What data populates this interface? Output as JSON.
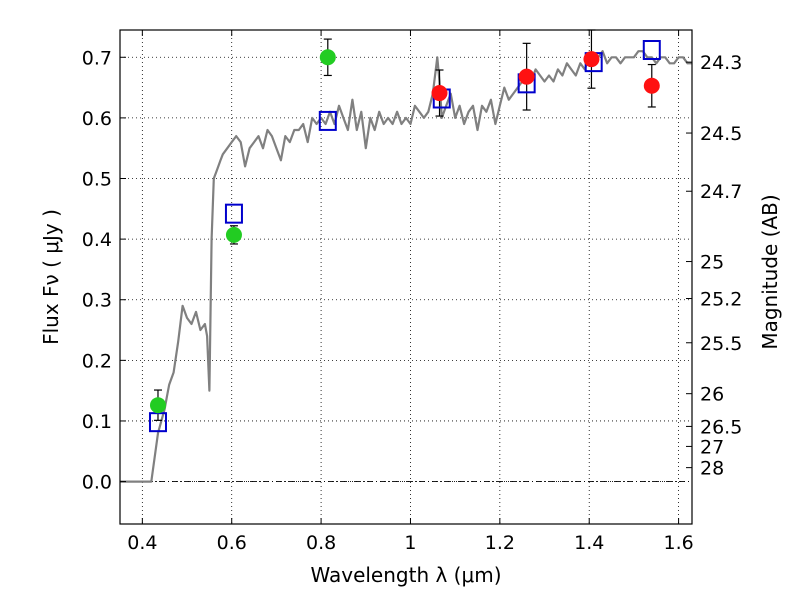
{
  "chart_data": {
    "type": "scatter",
    "title": "",
    "xlabel": "Wavelength  λ (μm)",
    "ylabel": "Flux  Fν  ( μJy )",
    "y2label": "Magnitude (AB)",
    "xlim": [
      0.35,
      1.63
    ],
    "ylim": [
      -0.07,
      0.745
    ],
    "grid": true,
    "x_ticks": [
      0.4,
      0.6,
      0.8,
      1.0,
      1.2,
      1.4,
      1.6
    ],
    "x_tick_labels": [
      "0.4",
      "0.6",
      "0.8",
      "1",
      "1.2",
      "1.4",
      "1.6"
    ],
    "y_ticks": [
      0.0,
      0.1,
      0.2,
      0.3,
      0.4,
      0.5,
      0.6,
      0.7
    ],
    "y_tick_labels": [
      "0.0",
      "0.1",
      "0.2",
      "0.3",
      "0.4",
      "0.5",
      "0.6",
      "0.7"
    ],
    "y2_ticks": [
      {
        "flux": 0.692,
        "label": "24.3"
      },
      {
        "flux": 0.575,
        "label": "24.5"
      },
      {
        "flux": 0.479,
        "label": "24.7"
      },
      {
        "flux": 0.363,
        "label": "25"
      },
      {
        "flux": 0.302,
        "label": "25.2"
      },
      {
        "flux": 0.229,
        "label": "25.5"
      },
      {
        "flux": 0.145,
        "label": "26"
      },
      {
        "flux": 0.091,
        "label": "26.5"
      },
      {
        "flux": 0.058,
        "label": "27"
      },
      {
        "flux": 0.023,
        "label": "28"
      }
    ],
    "series": [
      {
        "kind": "line",
        "color": "#808080",
        "x": [
          0.35,
          0.41,
          0.42,
          0.435,
          0.45,
          0.455,
          0.46,
          0.47,
          0.48,
          0.49,
          0.5,
          0.51,
          0.52,
          0.53,
          0.54,
          0.545,
          0.55,
          0.555,
          0.56,
          0.565,
          0.57,
          0.575,
          0.58,
          0.59,
          0.6,
          0.61,
          0.62,
          0.63,
          0.64,
          0.65,
          0.66,
          0.67,
          0.68,
          0.69,
          0.7,
          0.71,
          0.72,
          0.73,
          0.74,
          0.75,
          0.76,
          0.77,
          0.78,
          0.79,
          0.8,
          0.81,
          0.82,
          0.83,
          0.84,
          0.85,
          0.86,
          0.87,
          0.88,
          0.89,
          0.9,
          0.91,
          0.92,
          0.93,
          0.94,
          0.95,
          0.96,
          0.97,
          0.98,
          0.99,
          1.0,
          1.01,
          1.02,
          1.03,
          1.04,
          1.05,
          1.06,
          1.065,
          1.07,
          1.08,
          1.09,
          1.1,
          1.11,
          1.12,
          1.13,
          1.14,
          1.15,
          1.16,
          1.17,
          1.18,
          1.19,
          1.2,
          1.21,
          1.22,
          1.23,
          1.24,
          1.25,
          1.26,
          1.27,
          1.28,
          1.29,
          1.3,
          1.31,
          1.32,
          1.33,
          1.34,
          1.35,
          1.36,
          1.37,
          1.38,
          1.39,
          1.4,
          1.41,
          1.42,
          1.43,
          1.44,
          1.45,
          1.46,
          1.47,
          1.48,
          1.49,
          1.5,
          1.51,
          1.52,
          1.53,
          1.54,
          1.55,
          1.56,
          1.57,
          1.58,
          1.59,
          1.6,
          1.61,
          1.62,
          1.63
        ],
        "y": [
          0.0,
          0.0,
          0.0,
          0.08,
          0.12,
          0.14,
          0.16,
          0.18,
          0.23,
          0.29,
          0.27,
          0.26,
          0.28,
          0.25,
          0.26,
          0.24,
          0.15,
          0.4,
          0.5,
          0.51,
          0.52,
          0.53,
          0.54,
          0.55,
          0.56,
          0.57,
          0.56,
          0.52,
          0.55,
          0.56,
          0.57,
          0.55,
          0.58,
          0.57,
          0.55,
          0.53,
          0.57,
          0.56,
          0.58,
          0.58,
          0.59,
          0.56,
          0.6,
          0.59,
          0.6,
          0.59,
          0.61,
          0.59,
          0.62,
          0.6,
          0.58,
          0.63,
          0.58,
          0.61,
          0.55,
          0.6,
          0.58,
          0.61,
          0.59,
          0.6,
          0.59,
          0.61,
          0.59,
          0.6,
          0.59,
          0.62,
          0.61,
          0.6,
          0.61,
          0.64,
          0.7,
          0.66,
          0.6,
          0.62,
          0.64,
          0.6,
          0.62,
          0.59,
          0.61,
          0.62,
          0.58,
          0.62,
          0.61,
          0.63,
          0.59,
          0.62,
          0.65,
          0.63,
          0.64,
          0.65,
          0.66,
          0.67,
          0.66,
          0.68,
          0.67,
          0.66,
          0.67,
          0.66,
          0.68,
          0.67,
          0.69,
          0.68,
          0.67,
          0.69,
          0.68,
          0.7,
          0.69,
          0.7,
          0.71,
          0.69,
          0.7,
          0.7,
          0.69,
          0.7,
          0.7,
          0.7,
          0.71,
          0.71,
          0.7,
          0.7,
          0.69,
          0.7,
          0.7,
          0.69,
          0.69,
          0.7,
          0.7,
          0.69,
          0.69
        ]
      },
      {
        "kind": "square",
        "color": "#0000cc",
        "x": [
          0.435,
          0.605,
          0.815,
          1.07,
          1.26,
          1.41,
          1.54
        ],
        "y": [
          0.098,
          0.442,
          0.595,
          0.632,
          0.657,
          0.692,
          0.712
        ]
      },
      {
        "kind": "circle",
        "color": "#22cc22",
        "x": [
          0.435,
          0.605,
          0.815
        ],
        "y": [
          0.126,
          0.407,
          0.7
        ],
        "err": [
          0.025,
          0.015,
          0.03
        ]
      },
      {
        "kind": "circle",
        "color": "#ff1111",
        "x": [
          1.065,
          1.26,
          1.405,
          1.54
        ],
        "y": [
          0.641,
          0.668,
          0.697,
          0.653
        ],
        "err": [
          0.038,
          0.055,
          0.048,
          0.035
        ]
      }
    ]
  }
}
